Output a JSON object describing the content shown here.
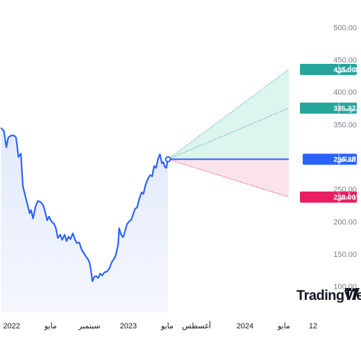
{
  "chart_data": {
    "type": "line",
    "title": "",
    "xlabel": "",
    "ylabel": "",
    "ylim": [
      60,
      510
    ],
    "y_ticks": [
      "500.00",
      "450.00",
      "400.00",
      "350.00",
      "300.00",
      "250.00",
      "200.00",
      "150.00",
      "100.00"
    ],
    "y_tick_values": [
      500,
      450,
      400,
      350,
      300,
      250,
      200,
      150,
      100
    ],
    "x_ticks": [
      {
        "label": "2022",
        "month": 0
      },
      {
        "label": "مايو",
        "month": 4
      },
      {
        "label": "سبتمبر",
        "month": 8
      },
      {
        "label": "2023",
        "month": 12
      },
      {
        "label": "مايو",
        "month": 16
      },
      {
        "label": "أغسطس",
        "month": 19
      },
      {
        "label": "2024",
        "month": 24
      },
      {
        "label": "مايو",
        "month": 28
      },
      {
        "label": "12",
        "month": 31
      }
    ],
    "xlim_months": [
      -1.2,
      33.5
    ],
    "series": [
      {
        "values": [
          [
            -1.1,
            345
          ],
          [
            -0.8,
            340
          ],
          [
            -0.55,
            315
          ],
          [
            -0.35,
            330
          ],
          [
            -0.05,
            333
          ],
          [
            0.25,
            333
          ],
          [
            0.45,
            330
          ],
          [
            0.7,
            300
          ],
          [
            0.95,
            305
          ],
          [
            1.15,
            255
          ],
          [
            1.4,
            240
          ],
          [
            1.6,
            228
          ],
          [
            1.85,
            213
          ],
          [
            2.0,
            218
          ],
          [
            2.2,
            205
          ],
          [
            2.45,
            223
          ],
          [
            2.7,
            232
          ],
          [
            3.0,
            230
          ],
          [
            3.25,
            225
          ],
          [
            3.45,
            215
          ],
          [
            3.65,
            202
          ],
          [
            3.85,
            208
          ],
          [
            4.1,
            200
          ],
          [
            4.35,
            197
          ],
          [
            4.55,
            190
          ],
          [
            4.75,
            175
          ],
          [
            5.0,
            180
          ],
          [
            5.2,
            172
          ],
          [
            5.45,
            180
          ],
          [
            5.65,
            170
          ],
          [
            5.85,
            177
          ],
          [
            6.05,
            173
          ],
          [
            6.3,
            182
          ],
          [
            6.5,
            173
          ],
          [
            6.7,
            167
          ],
          [
            6.95,
            168
          ],
          [
            7.2,
            157
          ],
          [
            7.4,
            152
          ],
          [
            7.6,
            147
          ],
          [
            7.85,
            142
          ],
          [
            8.0,
            137
          ],
          [
            8.15,
            125
          ],
          [
            8.3,
            108
          ],
          [
            8.5,
            115
          ],
          [
            8.7,
            116
          ],
          [
            8.9,
            113
          ],
          [
            9.1,
            120
          ],
          [
            9.3,
            117
          ],
          [
            9.55,
            122
          ],
          [
            9.8,
            123
          ],
          [
            10.05,
            128
          ],
          [
            10.3,
            138
          ],
          [
            10.5,
            142
          ],
          [
            10.7,
            148
          ],
          [
            10.95,
            165
          ],
          [
            11.05,
            190
          ],
          [
            11.25,
            180
          ],
          [
            11.45,
            176
          ],
          [
            11.6,
            182
          ],
          [
            11.85,
            196
          ],
          [
            12.05,
            200
          ],
          [
            12.3,
            203
          ],
          [
            12.5,
            212
          ],
          [
            12.7,
            220
          ],
          [
            12.9,
            222
          ],
          [
            13.1,
            234
          ],
          [
            13.35,
            245
          ],
          [
            13.55,
            243
          ],
          [
            13.75,
            256
          ],
          [
            14.0,
            266
          ],
          [
            14.25,
            272
          ],
          [
            14.45,
            270
          ],
          [
            14.65,
            286
          ],
          [
            14.85,
            283
          ],
          [
            15.05,
            297
          ],
          [
            15.25,
            304
          ],
          [
            15.45,
            290
          ],
          [
            15.6,
            292
          ],
          [
            15.75,
            285
          ],
          [
            15.9,
            283
          ],
          [
            16.08,
            296.38
          ]
        ]
      }
    ],
    "current_month": 16.08,
    "forecast_month": 28.5,
    "forecast": [
      {
        "key": "high",
        "label": "+46.77% أعلى",
        "value": 435.0,
        "display": "435.00",
        "color": "#26a69a"
      },
      {
        "key": "avg",
        "label": "+26.62% متوسط",
        "value": 375.27,
        "display": "375.27",
        "color": "#26a69a"
      },
      {
        "key": "current",
        "label": "الاشتراك الحالي",
        "value": 296.38,
        "display": "296.38",
        "color": "#2962ff"
      },
      {
        "key": "low",
        "label": "-19.70% أدنى",
        "value": 238.0,
        "display": "238.00",
        "color": "#e91e63"
      }
    ],
    "colors": {
      "line": "#2962ff",
      "area_fill": "#e8edfb",
      "upside_fill": "#ddf5ee",
      "downside_fill": "#fde4ea",
      "green_line": "#26a69a",
      "red_line": "#e91e63"
    },
    "watermark": "TradingView"
  }
}
